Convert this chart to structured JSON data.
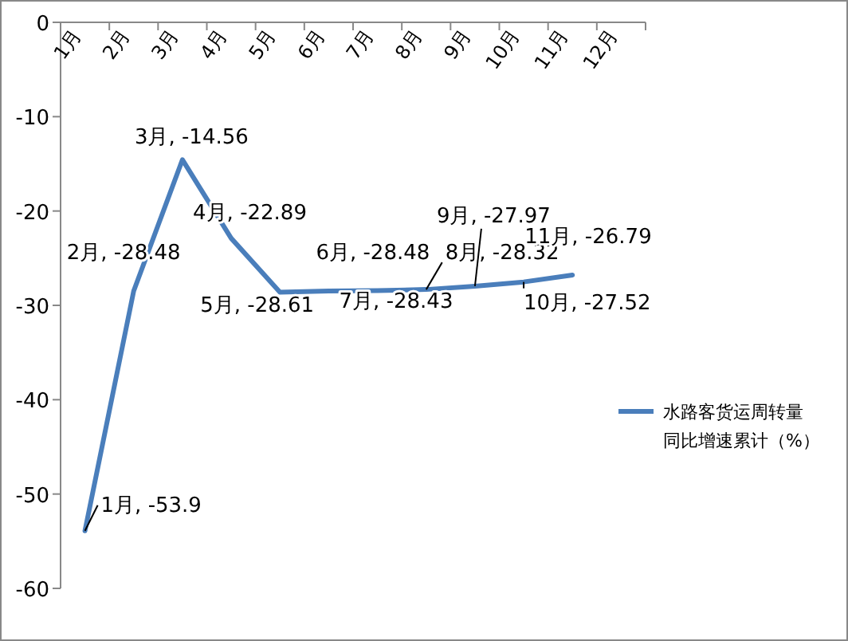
{
  "chart_data": {
    "type": "line",
    "categories": [
      "1月",
      "2月",
      "3月",
      "4月",
      "5月",
      "6月",
      "7月",
      "8月",
      "9月",
      "10月",
      "11月",
      "12月"
    ],
    "series": [
      {
        "name": "水路客货运周转量同比增速累计（%）",
        "color": "#4a7ebb",
        "values": [
          -53.9,
          -28.48,
          -14.56,
          -22.89,
          -28.61,
          -28.48,
          -28.43,
          -28.32,
          -27.97,
          -27.52,
          -26.79,
          null
        ],
        "value_labels": [
          "1月, -53.9",
          "2月, -28.48",
          "3月, -14.56",
          "4月, -22.89",
          "5月, -28.61",
          "6月, -28.48",
          "7月, -28.43",
          "8月, -28.32",
          "9月, -27.97",
          "10月, -27.52",
          "11月, -26.79",
          null
        ]
      }
    ],
    "ylim": [
      -60,
      0
    ],
    "yticks": [
      -60,
      -50,
      -40,
      -30,
      -20,
      -10,
      0
    ],
    "grid": false,
    "legend": "right",
    "marker": "none",
    "line_style": "solid"
  }
}
